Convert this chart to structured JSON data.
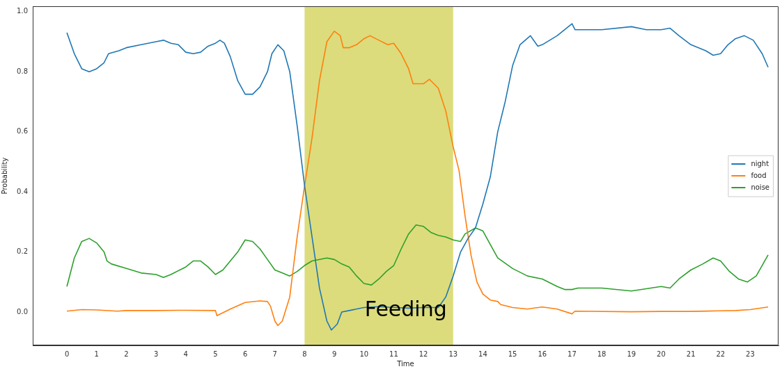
{
  "chart_data": {
    "type": "line",
    "xlabel": "Time",
    "ylabel": "Probability",
    "xlim": [
      -1.15,
      23.95
    ],
    "ylim": [
      -0.111,
      1.018
    ],
    "xticks": [
      0,
      1,
      2,
      3,
      4,
      5,
      6,
      7,
      8,
      9,
      10,
      11,
      12,
      13,
      14,
      15,
      16,
      17,
      18,
      19,
      20,
      21,
      22,
      23
    ],
    "yticks": [
      {
        "value": 0,
        "label": "0.0"
      },
      {
        "value": 0.2,
        "label": "0.2"
      },
      {
        "value": 0.4,
        "label": "0.4"
      },
      {
        "value": 0.6,
        "label": "0.6"
      },
      {
        "value": 0.8,
        "label": "0.8"
      },
      {
        "value": 1,
        "label": "1.0"
      }
    ],
    "grid": false,
    "legend": "right",
    "line_style": "solid",
    "bands": [
      {
        "axis": "x",
        "from": 8,
        "to": 13,
        "color": "#dcdc7c",
        "label": "Feeding"
      }
    ],
    "series": [
      {
        "name": "night",
        "color": "#1f77b4",
        "x": [
          0,
          0.25,
          0.5,
          0.75,
          1,
          1.25,
          1.4,
          1.75,
          2,
          2.5,
          3,
          3.25,
          3.5,
          3.75,
          4,
          4.25,
          4.5,
          4.75,
          5,
          5.15,
          5.3,
          5.5,
          5.75,
          6,
          6.25,
          6.5,
          6.75,
          6.9,
          7.1,
          7.3,
          7.5,
          7.75,
          8,
          8.25,
          8.5,
          8.75,
          8.9,
          9.1,
          9.25,
          9.5,
          10,
          10.5,
          11,
          11.5,
          12,
          12.5,
          12.75,
          13,
          13.25,
          13.5,
          13.75,
          14,
          14.25,
          14.5,
          14.75,
          15,
          15.25,
          15.6,
          15.85,
          16,
          16.5,
          17,
          17.1,
          18,
          19,
          19.5,
          20,
          20.3,
          20.6,
          21,
          21.5,
          21.75,
          22,
          22.25,
          22.5,
          22.8,
          23.1,
          23.4,
          23.6
        ],
        "values": [
          0.93,
          0.86,
          0.81,
          0.8,
          0.81,
          0.83,
          0.86,
          0.87,
          0.88,
          0.89,
          0.9,
          0.905,
          0.895,
          0.89,
          0.865,
          0.86,
          0.865,
          0.885,
          0.895,
          0.905,
          0.895,
          0.85,
          0.77,
          0.725,
          0.725,
          0.75,
          0.8,
          0.86,
          0.89,
          0.87,
          0.8,
          0.62,
          0.42,
          0.25,
          0.08,
          -0.03,
          -0.06,
          -0.04,
          0,
          0.005,
          0.015,
          0.018,
          0.015,
          0.013,
          0.015,
          0.015,
          0.05,
          0.12,
          0.2,
          0.245,
          0.28,
          0.36,
          0.45,
          0.6,
          0.7,
          0.82,
          0.89,
          0.92,
          0.885,
          0.89,
          0.92,
          0.96,
          0.94,
          0.94,
          0.95,
          0.94,
          0.94,
          0.945,
          0.92,
          0.89,
          0.87,
          0.855,
          0.86,
          0.89,
          0.91,
          0.92,
          0.905,
          0.86,
          0.815
        ]
      },
      {
        "name": "food",
        "color": "#ff7f0e",
        "x": [
          0,
          0.5,
          1,
          1.7,
          2,
          3,
          4,
          5,
          5.05,
          5.5,
          6,
          6.5,
          6.75,
          6.85,
          7,
          7.1,
          7.25,
          7.5,
          7.75,
          8,
          8.25,
          8.5,
          8.75,
          9,
          9.2,
          9.3,
          9.5,
          9.75,
          10,
          10.2,
          10.5,
          10.8,
          11,
          11.25,
          11.5,
          11.65,
          12,
          12.2,
          12.5,
          12.75,
          13,
          13.2,
          13.4,
          13.6,
          13.8,
          14,
          14.25,
          14.5,
          14.6,
          15,
          15.5,
          16,
          16.5,
          17,
          17.1,
          19,
          20,
          21,
          22,
          22.5,
          23,
          23.6
        ],
        "values": [
          0.003,
          0.008,
          0.007,
          0.003,
          0.005,
          0.005,
          0.006,
          0.005,
          -0.012,
          0.01,
          0.032,
          0.037,
          0.035,
          0.02,
          -0.03,
          -0.045,
          -0.03,
          0.05,
          0.25,
          0.42,
          0.58,
          0.77,
          0.9,
          0.935,
          0.92,
          0.88,
          0.88,
          0.89,
          0.91,
          0.92,
          0.905,
          0.89,
          0.895,
          0.86,
          0.81,
          0.76,
          0.76,
          0.775,
          0.745,
          0.67,
          0.55,
          0.47,
          0.32,
          0.19,
          0.1,
          0.06,
          0.04,
          0.035,
          0.025,
          0.015,
          0.01,
          0.017,
          0.01,
          -0.006,
          0.003,
          0.001,
          0.002,
          0.002,
          0.004,
          0.005,
          0.008,
          0.017
        ]
      },
      {
        "name": "noise",
        "color": "#2ca02c",
        "x": [
          0,
          0.25,
          0.5,
          0.75,
          1,
          1.25,
          1.35,
          1.5,
          2,
          2.5,
          3,
          3.25,
          3.5,
          4,
          4.25,
          4.5,
          4.75,
          5,
          5.25,
          5.5,
          5.75,
          6,
          6.25,
          6.5,
          6.75,
          7,
          7.25,
          7.5,
          7.75,
          8,
          8.25,
          8.75,
          9,
          9.25,
          9.5,
          9.75,
          10,
          10.25,
          10.5,
          10.75,
          11,
          11.25,
          11.5,
          11.75,
          12,
          12.25,
          12.5,
          12.75,
          13,
          13.25,
          13.4,
          13.75,
          14,
          14.25,
          14.5,
          15,
          15.5,
          16,
          16.5,
          16.75,
          17,
          17.2,
          18,
          19,
          20,
          20.3,
          20.6,
          21,
          21.4,
          21.75,
          22,
          22.3,
          22.6,
          22.9,
          23.2,
          23.6
        ],
        "values": [
          0.085,
          0.18,
          0.235,
          0.245,
          0.23,
          0.2,
          0.17,
          0.16,
          0.145,
          0.13,
          0.125,
          0.115,
          0.125,
          0.15,
          0.17,
          0.17,
          0.15,
          0.125,
          0.14,
          0.17,
          0.2,
          0.24,
          0.235,
          0.21,
          0.175,
          0.14,
          0.13,
          0.12,
          0.135,
          0.155,
          0.17,
          0.18,
          0.175,
          0.16,
          0.15,
          0.12,
          0.095,
          0.09,
          0.11,
          0.135,
          0.155,
          0.21,
          0.26,
          0.29,
          0.285,
          0.265,
          0.255,
          0.25,
          0.24,
          0.235,
          0.26,
          0.28,
          0.27,
          0.225,
          0.18,
          0.145,
          0.12,
          0.11,
          0.085,
          0.075,
          0.075,
          0.08,
          0.08,
          0.07,
          0.085,
          0.08,
          0.11,
          0.14,
          0.16,
          0.18,
          0.17,
          0.135,
          0.11,
          0.1,
          0.12,
          0.19
        ]
      }
    ]
  }
}
